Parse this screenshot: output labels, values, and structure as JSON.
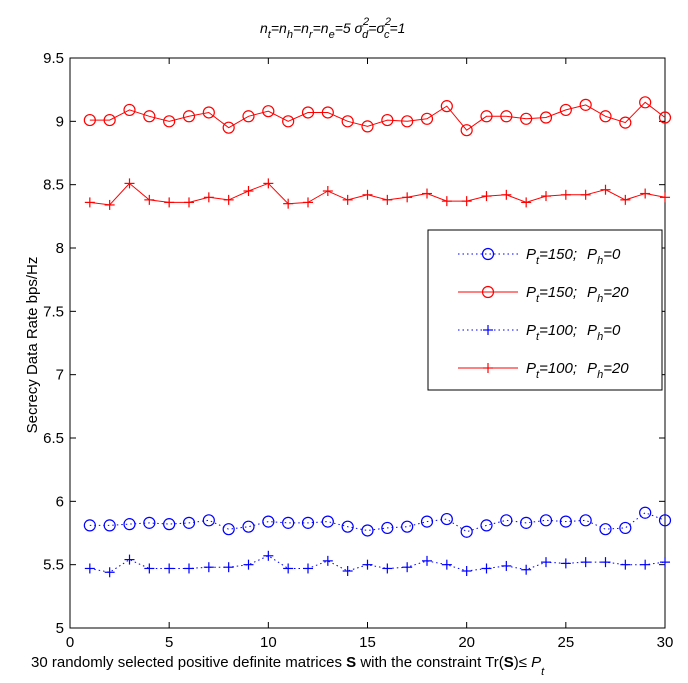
{
  "chart_data": {
    "type": "line",
    "title": "n_t=n_h=n_r=n_e=5  σ_d^2=σ_c^2=1",
    "xlabel": "30 randomly selected positive definite matrices S with the constraint Tr(S)≤ P_t",
    "ylabel": "Secrecy Data Rate bps/Hz",
    "xlim": [
      0,
      30
    ],
    "ylim": [
      5,
      9.5
    ],
    "xticks": [
      0,
      5,
      10,
      15,
      20,
      25,
      30
    ],
    "yticks": [
      5,
      5.5,
      6,
      6.5,
      7,
      7.5,
      8,
      8.5,
      9,
      9.5
    ],
    "grid": false,
    "legend_position": "right",
    "x": [
      1,
      2,
      3,
      4,
      5,
      6,
      7,
      8,
      9,
      10,
      11,
      12,
      13,
      14,
      15,
      16,
      17,
      18,
      19,
      20,
      21,
      22,
      23,
      24,
      25,
      26,
      27,
      28,
      29,
      30
    ],
    "series": [
      {
        "name": "P_t=150;  P_h=0",
        "color": "#0000ff",
        "line": "dotted",
        "marker": "circle",
        "values": [
          5.81,
          5.81,
          5.82,
          5.83,
          5.82,
          5.83,
          5.85,
          5.78,
          5.8,
          5.84,
          5.83,
          5.83,
          5.84,
          5.8,
          5.77,
          5.79,
          5.8,
          5.84,
          5.86,
          5.76,
          5.81,
          5.85,
          5.83,
          5.85,
          5.84,
          5.85,
          5.78,
          5.79,
          5.91,
          5.85
        ]
      },
      {
        "name": "P_t=150;  P_h=20",
        "color": "#ff0000",
        "line": "solid",
        "marker": "circle",
        "values": [
          9.01,
          9.01,
          9.09,
          9.04,
          9.0,
          9.04,
          9.07,
          8.95,
          9.04,
          9.08,
          9.0,
          9.07,
          9.07,
          9.0,
          8.96,
          9.01,
          9.0,
          9.02,
          9.12,
          8.93,
          9.04,
          9.04,
          9.02,
          9.03,
          9.09,
          9.13,
          9.04,
          8.99,
          9.15,
          9.03
        ]
      },
      {
        "name": "P_t=100;  P_h=0",
        "color": "#0000ff",
        "line": "dotted",
        "marker": "plus",
        "values": [
          5.47,
          5.44,
          5.54,
          5.47,
          5.47,
          5.47,
          5.48,
          5.48,
          5.5,
          5.57,
          5.47,
          5.47,
          5.53,
          5.45,
          5.5,
          5.47,
          5.48,
          5.53,
          5.5,
          5.45,
          5.47,
          5.49,
          5.46,
          5.52,
          5.51,
          5.52,
          5.52,
          5.5,
          5.5,
          5.52
        ]
      },
      {
        "name": "P_t=100;  P_h=20",
        "color": "#ff0000",
        "line": "solid",
        "marker": "plus",
        "values": [
          8.36,
          8.34,
          8.51,
          8.38,
          8.36,
          8.36,
          8.4,
          8.38,
          8.45,
          8.51,
          8.35,
          8.36,
          8.45,
          8.38,
          8.42,
          8.38,
          8.4,
          8.43,
          8.37,
          8.37,
          8.41,
          8.42,
          8.36,
          8.41,
          8.42,
          8.42,
          8.46,
          8.38,
          8.43,
          8.4
        ]
      }
    ]
  }
}
